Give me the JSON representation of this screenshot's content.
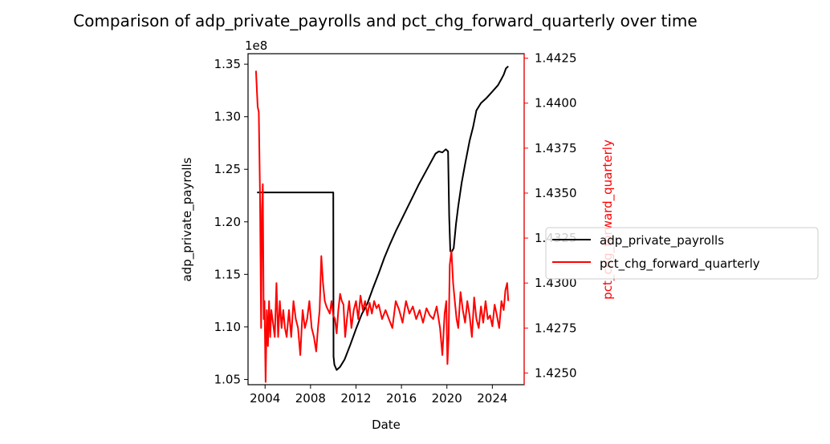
{
  "chart_data": {
    "type": "line",
    "title": "Comparison of adp_private_payrolls and pct_chg_forward_quarterly over time",
    "xlabel": "Date",
    "ylabel_left": "adp_private_payrolls",
    "ylabel_right": "pct_chg_forward_quarterly",
    "left_offset_text": "1e8",
    "x_ticks": [
      2004,
      2008,
      2012,
      2016,
      2020,
      2024
    ],
    "xlim": [
      2002.5,
      2026.8
    ],
    "ylim_left": [
      104500000,
      136000000
    ],
    "ylim_right": [
      1.42435,
      1.44275
    ],
    "left_ticks": [
      "1.05",
      "1.10",
      "1.15",
      "1.20",
      "1.25",
      "1.30",
      "1.35"
    ],
    "left_tick_values": [
      105000000,
      110000000,
      115000000,
      120000000,
      125000000,
      130000000,
      135000000
    ],
    "right_ticks": [
      "1.4250",
      "1.4275",
      "1.4300",
      "1.4325",
      "1.4350",
      "1.4375",
      "1.4400",
      "1.4425"
    ],
    "right_tick_values": [
      1.425,
      1.4275,
      1.43,
      1.4325,
      1.435,
      1.4375,
      1.44,
      1.4425
    ],
    "grid": false,
    "legend_position": "outside-right",
    "series": [
      {
        "name": "adp_private_payrolls",
        "axis": "left",
        "color": "#000000",
        "x": [
          2003.3,
          2005,
          2008,
          2010.0,
          2010.02,
          2010.1,
          2010.3,
          2010.6,
          2011.0,
          2011.5,
          2012.0,
          2012.5,
          2013.0,
          2013.5,
          2014.0,
          2014.5,
          2015.0,
          2015.5,
          2016.0,
          2016.5,
          2017.0,
          2017.5,
          2018.0,
          2018.5,
          2019.0,
          2019.3,
          2019.6,
          2019.9,
          2020.1,
          2020.2,
          2020.3,
          2020.45,
          2020.6,
          2020.8,
          2021.0,
          2021.3,
          2021.6,
          2022.0,
          2022.3,
          2022.6,
          2023.0,
          2023.5,
          2024.0,
          2024.5,
          2024.8,
          2025.0,
          2025.2,
          2025.4
        ],
        "y": [
          122800000,
          122800000,
          122800000,
          122800000,
          107200000,
          106400000,
          105900000,
          106200000,
          106900000,
          108300000,
          109800000,
          111200000,
          112200000,
          113700000,
          115100000,
          116600000,
          117900000,
          119100000,
          120200000,
          121300000,
          122400000,
          123500000,
          124500000,
          125500000,
          126500000,
          126700000,
          126600000,
          126900000,
          126700000,
          120500000,
          117200000,
          117200000,
          117500000,
          119800000,
          121500000,
          123700000,
          125500000,
          127700000,
          129000000,
          130600000,
          131300000,
          131800000,
          132400000,
          133000000,
          133600000,
          134000000,
          134600000,
          134800000
        ]
      },
      {
        "name": "pct_chg_forward_quarterly",
        "axis": "right",
        "color": "#ff0000",
        "x": [
          2003.2,
          2003.35,
          2003.45,
          2003.55,
          2003.65,
          2003.72,
          2003.8,
          2003.88,
          2003.95,
          2004.05,
          2004.15,
          2004.25,
          2004.35,
          2004.45,
          2004.55,
          2004.7,
          2004.85,
          2005.0,
          2005.15,
          2005.3,
          2005.45,
          2005.6,
          2005.75,
          2005.9,
          2006.1,
          2006.3,
          2006.5,
          2006.7,
          2006.9,
          2007.1,
          2007.3,
          2007.5,
          2007.7,
          2007.9,
          2008.1,
          2008.3,
          2008.5,
          2008.65,
          2008.8,
          2008.95,
          2009.1,
          2009.25,
          2009.4,
          2009.55,
          2009.7,
          2009.85,
          2010.0,
          2010.15,
          2010.3,
          2010.45,
          2010.6,
          2010.75,
          2010.9,
          2011.05,
          2011.2,
          2011.4,
          2011.6,
          2011.8,
          2012.0,
          2012.2,
          2012.4,
          2012.6,
          2012.8,
          2013.0,
          2013.2,
          2013.4,
          2013.6,
          2013.8,
          2014.0,
          2014.3,
          2014.6,
          2014.9,
          2015.2,
          2015.5,
          2015.8,
          2016.1,
          2016.4,
          2016.7,
          2017.0,
          2017.3,
          2017.6,
          2017.9,
          2018.2,
          2018.5,
          2018.8,
          2019.1,
          2019.4,
          2019.6,
          2019.8,
          2019.95,
          2020.05,
          2020.15,
          2020.25,
          2020.4,
          2020.55,
          2020.7,
          2020.85,
          2021.0,
          2021.2,
          2021.4,
          2021.6,
          2021.8,
          2022.0,
          2022.2,
          2022.4,
          2022.6,
          2022.8,
          2023.0,
          2023.2,
          2023.4,
          2023.6,
          2023.8,
          2024.0,
          2024.2,
          2024.4,
          2024.6,
          2024.8,
          2025.0,
          2025.15,
          2025.3,
          2025.4
        ],
        "y": [
          1.4418,
          1.4398,
          1.4395,
          1.435,
          1.4275,
          1.434,
          1.4355,
          1.428,
          1.429,
          1.4245,
          1.4285,
          1.4265,
          1.429,
          1.427,
          1.4285,
          1.4278,
          1.427,
          1.43,
          1.427,
          1.429,
          1.4275,
          1.4285,
          1.4275,
          1.427,
          1.4285,
          1.427,
          1.429,
          1.428,
          1.4275,
          1.426,
          1.4285,
          1.4275,
          1.428,
          1.429,
          1.4275,
          1.427,
          1.4262,
          1.4275,
          1.4285,
          1.4315,
          1.43,
          1.429,
          1.4287,
          1.4285,
          1.4283,
          1.429,
          1.4282,
          1.428,
          1.4272,
          1.4285,
          1.4294,
          1.429,
          1.4288,
          1.427,
          1.428,
          1.429,
          1.4275,
          1.4285,
          1.429,
          1.428,
          1.4293,
          1.4285,
          1.429,
          1.4282,
          1.4289,
          1.4283,
          1.429,
          1.4286,
          1.4288,
          1.428,
          1.4285,
          1.428,
          1.4275,
          1.429,
          1.4285,
          1.4278,
          1.429,
          1.4283,
          1.4287,
          1.428,
          1.4285,
          1.4278,
          1.4286,
          1.4282,
          1.428,
          1.4287,
          1.4275,
          1.426,
          1.4283,
          1.429,
          1.4255,
          1.427,
          1.431,
          1.4318,
          1.43,
          1.429,
          1.428,
          1.4275,
          1.4295,
          1.4285,
          1.4278,
          1.429,
          1.4282,
          1.427,
          1.4292,
          1.428,
          1.4275,
          1.4287,
          1.4278,
          1.429,
          1.428,
          1.4282,
          1.4276,
          1.4288,
          1.4282,
          1.4275,
          1.429,
          1.4285,
          1.4296,
          1.43,
          1.429
        ]
      }
    ]
  }
}
